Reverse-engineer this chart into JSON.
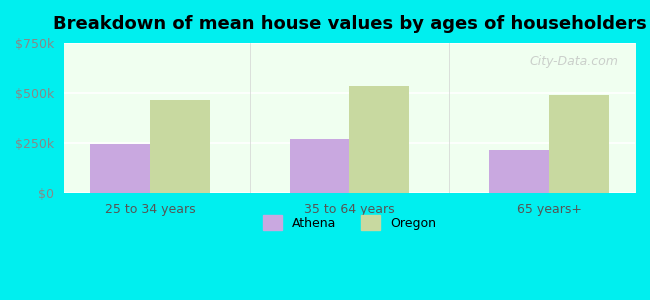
{
  "title": "Breakdown of mean house values by ages of householders",
  "categories": [
    "25 to 34 years",
    "35 to 64 years",
    "65 years+"
  ],
  "athena_values": [
    245000,
    270000,
    215000
  ],
  "oregon_values": [
    465000,
    535000,
    490000
  ],
  "athena_color": "#c9a8e0",
  "oregon_color": "#c8d9a0",
  "background_outer": "#00efef",
  "background_inner_top": "#e8f5e0",
  "background_inner_bottom": "#d0f0e8",
  "ylim": [
    0,
    750000
  ],
  "yticks": [
    0,
    250000,
    500000,
    750000
  ],
  "ytick_labels": [
    "$0",
    "$250k",
    "$500k",
    "$750k"
  ],
  "bar_width": 0.3,
  "legend_labels": [
    "Athena",
    "Oregon"
  ],
  "watermark": "City-Data.com"
}
